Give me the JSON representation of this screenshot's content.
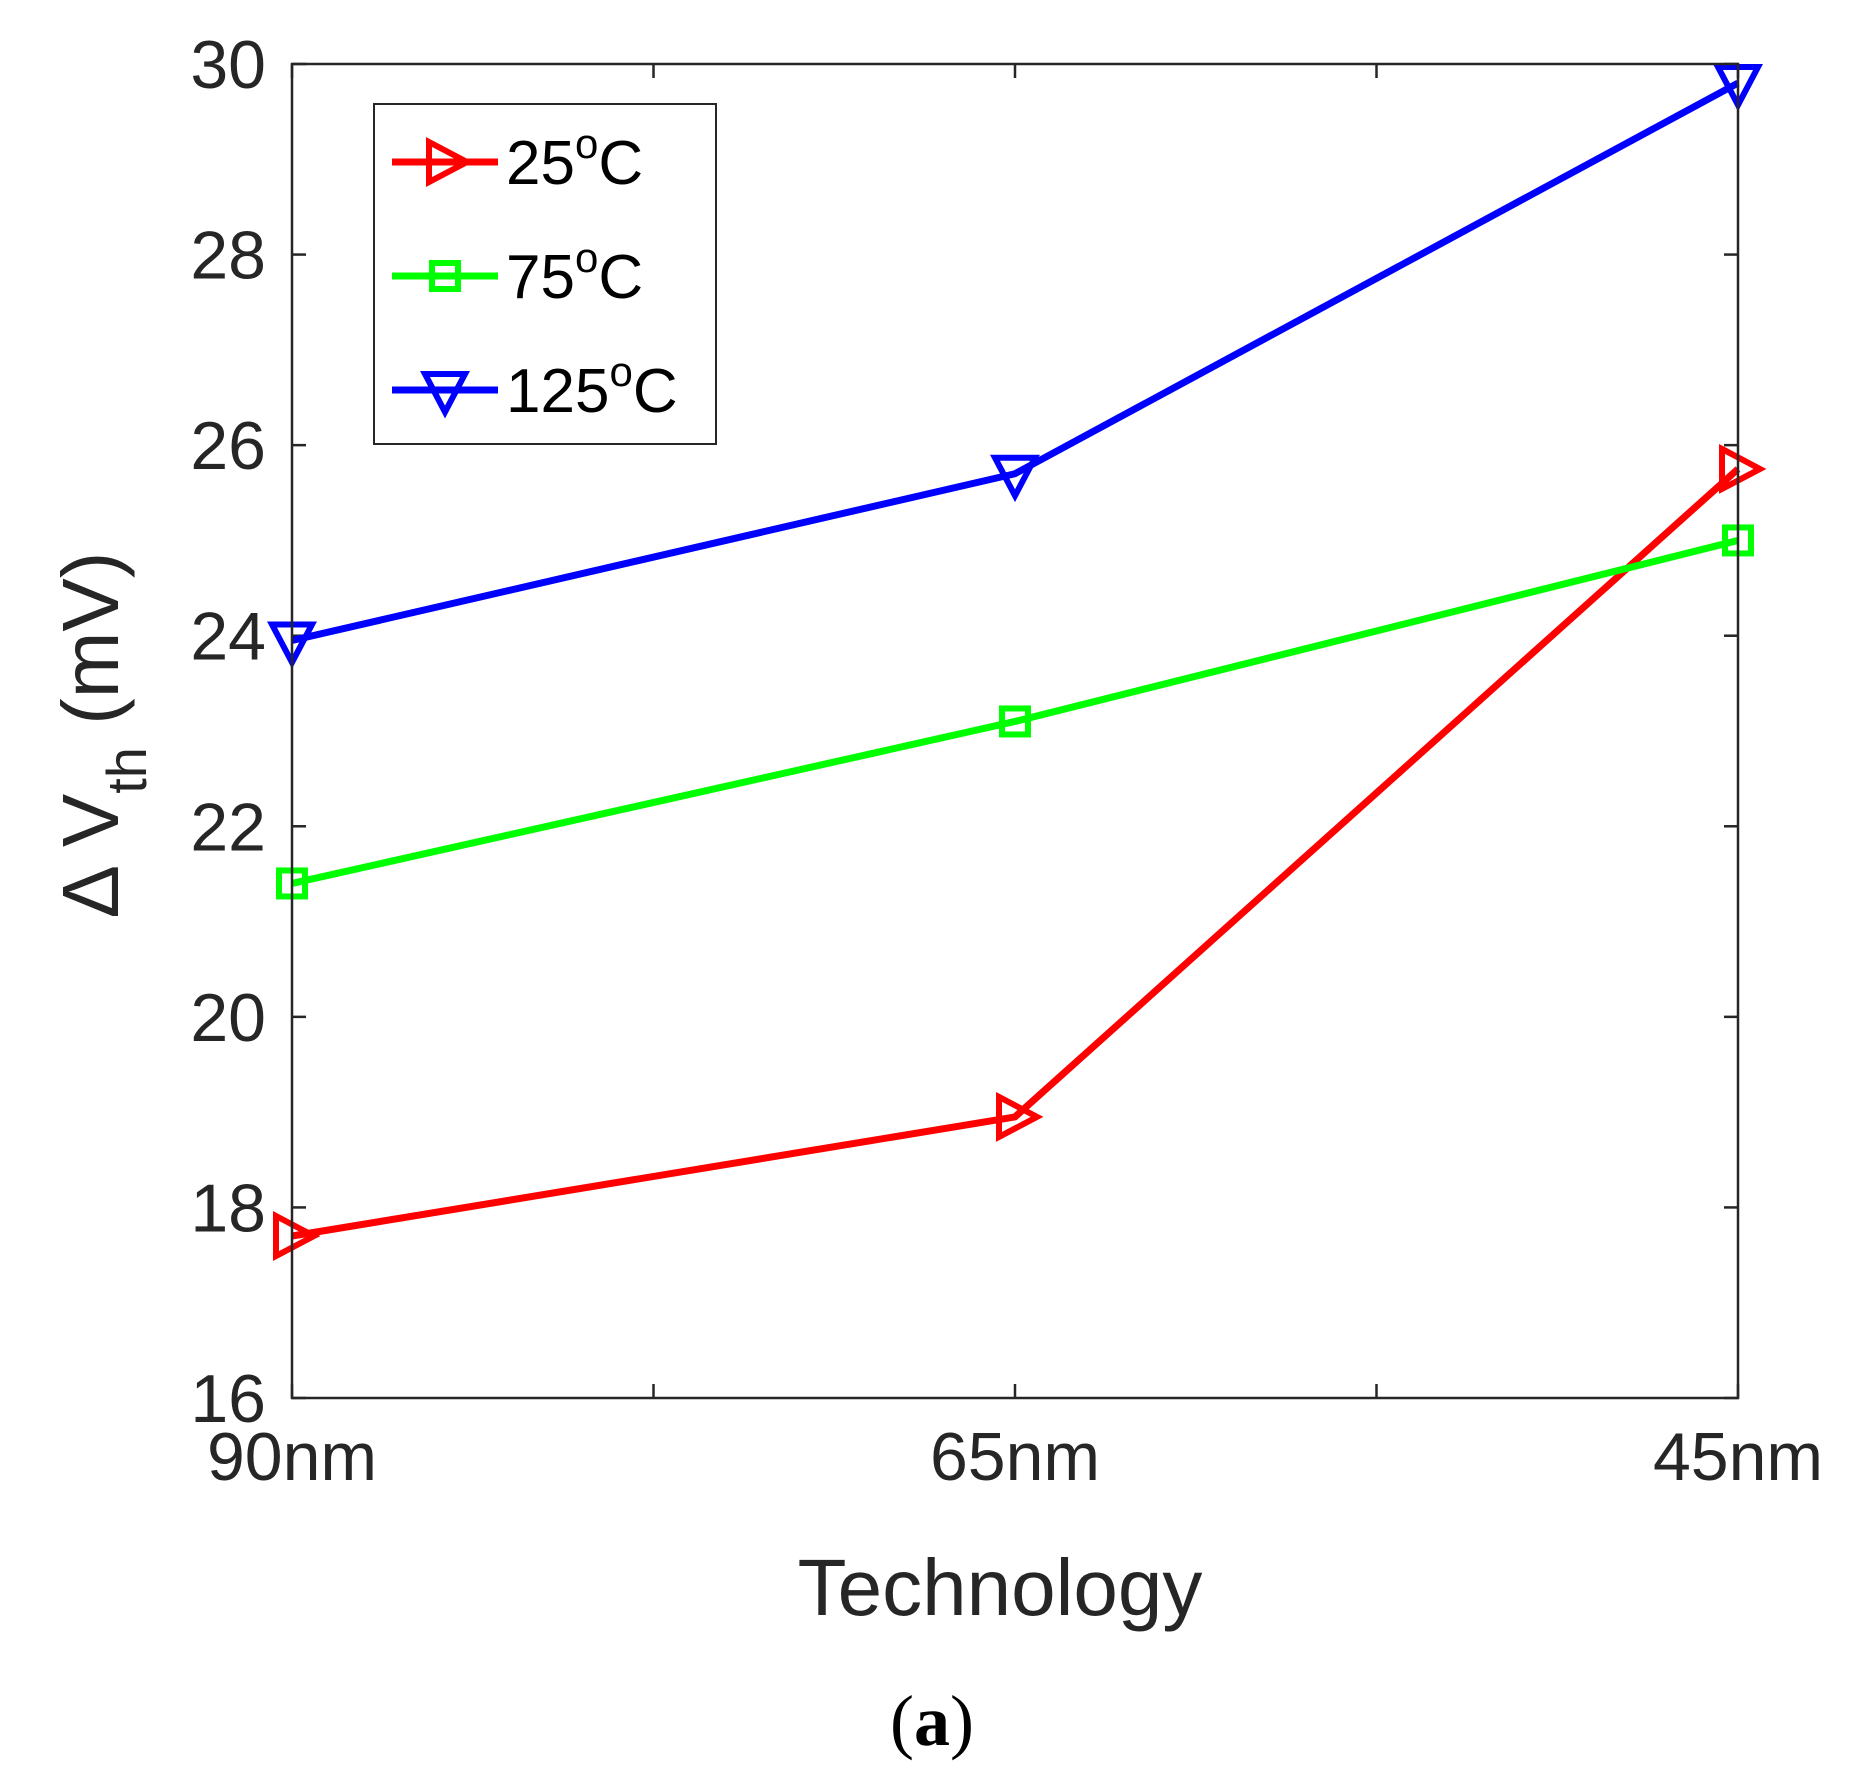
{
  "chart_data": {
    "type": "line",
    "categories": [
      "90nm",
      "65nm",
      "45nm"
    ],
    "series": [
      {
        "name": "25",
        "unit": "oC",
        "marker": "triangle-right",
        "color": "#ff0000",
        "values": [
          17.7,
          18.95,
          25.75
        ]
      },
      {
        "name": "75",
        "unit": "oC",
        "marker": "square",
        "color": "#00ff00",
        "values": [
          21.4,
          23.1,
          25.0
        ]
      },
      {
        "name": "125",
        "unit": "oC",
        "marker": "triangle-down",
        "color": "#0000ff",
        "values": [
          23.95,
          25.7,
          29.8
        ]
      }
    ],
    "xlabel": "Technology",
    "ylabel": {
      "prefix": "Δ V",
      "subscript": "th",
      "suffix": " (mV)"
    },
    "ylim": [
      16,
      30
    ],
    "yticks": [
      "16",
      "18",
      "20",
      "22",
      "24",
      "26",
      "28",
      "30"
    ],
    "grid": false,
    "legend_position": "top-left"
  },
  "caption": {
    "open": "(",
    "letter": "a",
    "close": ")"
  }
}
